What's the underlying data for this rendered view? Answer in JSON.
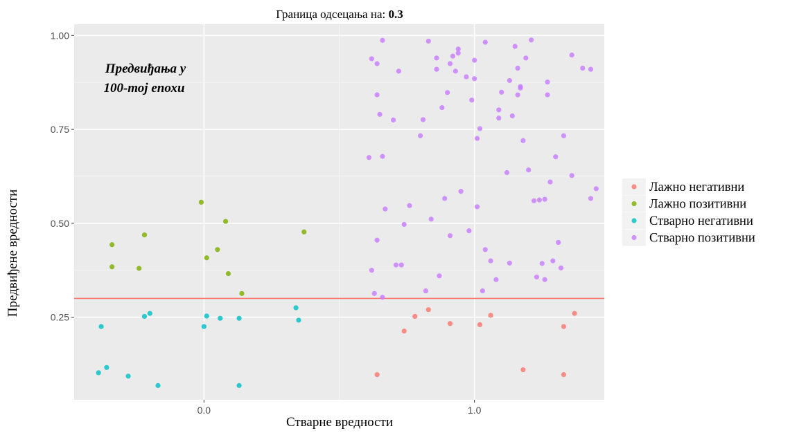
{
  "chart_data": {
    "type": "scatter",
    "title_prefix": "Граница одсецања на: ",
    "title_value": "0.3",
    "annotation_line1": "Предвиђања у",
    "annotation_line2": "100-тој епохи",
    "xlabel": "Стварне вредности",
    "ylabel": "Предвиђене вредности",
    "xlim": [
      -0.48,
      1.48
    ],
    "ylim": [
      0.03,
      1.03
    ],
    "x_ticks": [
      0.0,
      1.0
    ],
    "x_tick_labels": [
      "0.0",
      "1.0"
    ],
    "y_ticks": [
      0.25,
      0.5,
      0.75,
      1.0
    ],
    "y_tick_labels": [
      "0.25",
      "0.50",
      "0.75",
      "1.00"
    ],
    "threshold": 0.3,
    "threshold_color": "#F8766D",
    "grid": true,
    "legend_position": "right",
    "series": [
      {
        "name": "Лажно негативни",
        "color": "#F8766D",
        "points": [
          [
            0.64,
            0.097
          ],
          [
            0.74,
            0.213
          ],
          [
            0.78,
            0.252
          ],
          [
            0.83,
            0.27
          ],
          [
            0.91,
            0.233
          ],
          [
            1.02,
            0.23
          ],
          [
            1.06,
            0.255
          ],
          [
            1.18,
            0.11
          ],
          [
            1.33,
            0.225
          ],
          [
            1.33,
            0.097
          ],
          [
            1.37,
            0.26
          ]
        ]
      },
      {
        "name": "Лажно позитивни",
        "color": "#7CAE00",
        "points": [
          [
            -0.34,
            0.443
          ],
          [
            -0.34,
            0.384
          ],
          [
            -0.24,
            0.38
          ],
          [
            -0.22,
            0.469
          ],
          [
            -0.01,
            0.556
          ],
          [
            0.01,
            0.408
          ],
          [
            0.05,
            0.43
          ],
          [
            0.08,
            0.505
          ],
          [
            0.09,
            0.366
          ],
          [
            0.14,
            0.313
          ],
          [
            0.37,
            0.477
          ]
        ]
      },
      {
        "name": "Стварно негативни",
        "color": "#00BFC4",
        "points": [
          [
            -0.38,
            0.225
          ],
          [
            -0.39,
            0.102
          ],
          [
            -0.36,
            0.116
          ],
          [
            -0.28,
            0.093
          ],
          [
            -0.22,
            0.252
          ],
          [
            -0.2,
            0.26
          ],
          [
            -0.17,
            0.068
          ],
          [
            0.0,
            0.225
          ],
          [
            0.01,
            0.253
          ],
          [
            0.06,
            0.247
          ],
          [
            0.13,
            0.247
          ],
          [
            0.13,
            0.068
          ],
          [
            0.34,
            0.275
          ],
          [
            0.35,
            0.242
          ]
        ]
      },
      {
        "name": "Стварно позитивни",
        "color": "#C77CFF",
        "points": [
          [
            0.61,
            0.675
          ],
          [
            0.62,
            0.938
          ],
          [
            0.62,
            0.375
          ],
          [
            0.63,
            0.313
          ],
          [
            0.64,
            0.455
          ],
          [
            0.64,
            0.925
          ],
          [
            0.64,
            0.842
          ],
          [
            0.65,
            0.79
          ],
          [
            0.66,
            0.678
          ],
          [
            0.66,
            0.987
          ],
          [
            0.66,
            0.303
          ],
          [
            0.67,
            0.538
          ],
          [
            0.7,
            0.775
          ],
          [
            0.71,
            0.389
          ],
          [
            0.72,
            0.905
          ],
          [
            0.73,
            0.389
          ],
          [
            0.74,
            0.497
          ],
          [
            0.76,
            0.547
          ],
          [
            0.8,
            0.733
          ],
          [
            0.81,
            0.776
          ],
          [
            0.82,
            0.32
          ],
          [
            0.83,
            0.985
          ],
          [
            0.84,
            0.511
          ],
          [
            0.86,
            0.91
          ],
          [
            0.86,
            0.94
          ],
          [
            0.87,
            0.36
          ],
          [
            0.88,
            0.808
          ],
          [
            0.89,
            0.566
          ],
          [
            0.9,
            0.848
          ],
          [
            0.91,
            0.467
          ],
          [
            0.91,
            0.925
          ],
          [
            0.92,
            0.945
          ],
          [
            0.93,
            0.905
          ],
          [
            0.94,
            0.964
          ],
          [
            0.94,
            0.953
          ],
          [
            0.95,
            0.585
          ],
          [
            0.97,
            0.89
          ],
          [
            0.98,
            0.48
          ],
          [
            0.99,
            0.828
          ],
          [
            1.0,
            0.934
          ],
          [
            1.0,
            0.885
          ],
          [
            1.01,
            0.726
          ],
          [
            1.01,
            0.544
          ],
          [
            1.02,
            0.752
          ],
          [
            1.03,
            0.32
          ],
          [
            1.04,
            0.982
          ],
          [
            1.04,
            0.43
          ],
          [
            1.06,
            0.4
          ],
          [
            1.08,
            0.35
          ],
          [
            1.09,
            0.802
          ],
          [
            1.09,
            0.78
          ],
          [
            1.1,
            0.849
          ],
          [
            1.12,
            0.635
          ],
          [
            1.13,
            0.88
          ],
          [
            1.13,
            0.394
          ],
          [
            1.14,
            0.786
          ],
          [
            1.15,
            0.971
          ],
          [
            1.16,
            0.842
          ],
          [
            1.16,
            0.913
          ],
          [
            1.17,
            0.864
          ],
          [
            1.17,
            0.86
          ],
          [
            1.18,
            0.72
          ],
          [
            1.19,
            0.94
          ],
          [
            1.2,
            0.642
          ],
          [
            1.21,
            0.988
          ],
          [
            1.22,
            0.56
          ],
          [
            1.23,
            0.357
          ],
          [
            1.24,
            0.562
          ],
          [
            1.25,
            0.393
          ],
          [
            1.26,
            0.564
          ],
          [
            1.26,
            0.35
          ],
          [
            1.27,
            0.876
          ],
          [
            1.27,
            0.842
          ],
          [
            1.28,
            0.61
          ],
          [
            1.29,
            0.4
          ],
          [
            1.3,
            0.677
          ],
          [
            1.31,
            0.449
          ],
          [
            1.32,
            0.381
          ],
          [
            1.33,
            0.733
          ],
          [
            1.36,
            0.627
          ],
          [
            1.36,
            0.948
          ],
          [
            1.4,
            0.913
          ],
          [
            1.43,
            0.91
          ],
          [
            1.43,
            0.566
          ],
          [
            1.45,
            0.592
          ]
        ]
      }
    ]
  }
}
